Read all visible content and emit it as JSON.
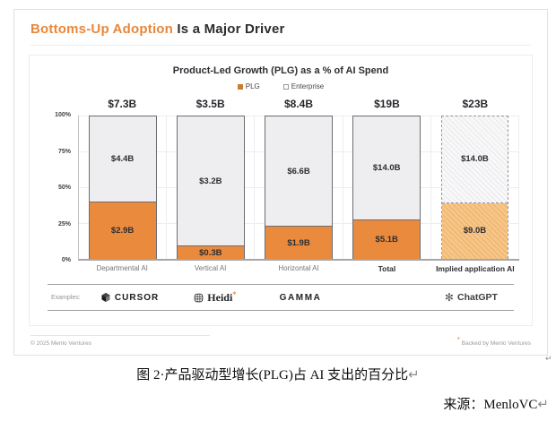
{
  "header": {
    "accent": "Bottoms-Up Adoption",
    "rest": " Is a Major Driver"
  },
  "chart_data": {
    "type": "bar",
    "stacked": true,
    "title": "Product-Led Growth (PLG) as a % of AI Spend",
    "legend": [
      "PLG",
      "Enterprise"
    ],
    "legend_position": "top",
    "grid": true,
    "categories": [
      "Departmental AI",
      "Vertical AI",
      "Horizontal AI",
      "Total",
      "Implied application AI"
    ],
    "totals_label": [
      "$7.3B",
      "$3.5B",
      "$8.4B",
      "$19B",
      "$23B"
    ],
    "totals_value_b": [
      7.3,
      3.5,
      8.4,
      19,
      23
    ],
    "series": [
      {
        "name": "PLG",
        "color": "#E98A3D",
        "values_b": [
          2.9,
          0.3,
          1.9,
          5.1,
          9.0
        ],
        "labels": [
          "$2.9B",
          "$0.3B",
          "$1.9B",
          "$5.1B",
          "$9.0B"
        ],
        "pct_of_total": [
          39.7,
          8.6,
          22.6,
          26.8,
          39.1
        ]
      },
      {
        "name": "Enterprise",
        "color": "#EEEDEF",
        "values_b": [
          4.4,
          3.2,
          6.6,
          14.0,
          14.0
        ],
        "labels": [
          "$4.4B",
          "$3.2B",
          "$6.6B",
          "$14.0B",
          "$14.0B"
        ]
      }
    ],
    "y_axis": {
      "ticks": [
        "100%",
        "75%",
        "50%",
        "25%",
        "0%"
      ],
      "ylim": [
        0,
        100
      ],
      "unit": "% of AI spend"
    },
    "style_note": "last category drawn with dashed outline and hatched fill"
  },
  "examples": {
    "label": "Examples:",
    "items": [
      {
        "name": "Cursor",
        "text": "CURSOR"
      },
      {
        "name": "Heidi",
        "text": "Heidi",
        "mark": "*"
      },
      {
        "name": "Gamma",
        "text": "GAMMA"
      },
      {
        "name": "ChatGPT",
        "text": "ChatGPT"
      }
    ]
  },
  "card": {
    "footer_left": "© 2025 Menlo Ventures",
    "footer_right_mark": "*",
    "footer_right": " Backed by Menlo Ventures"
  },
  "page": {
    "caption": "图 2·产品驱动型增长(PLG)占 AI 支出的百分比",
    "source": "来源：MenloVC",
    "return_mark": "↵"
  }
}
